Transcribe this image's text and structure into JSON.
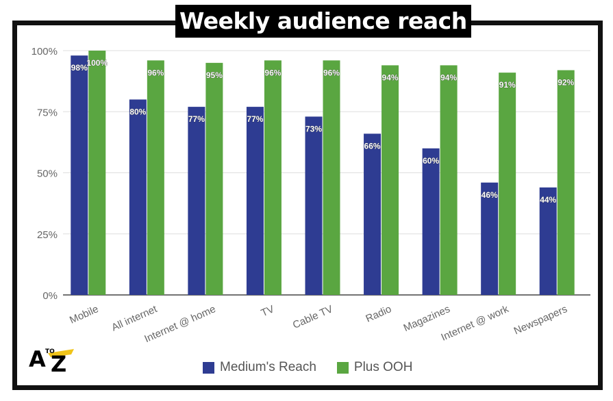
{
  "title": "Weekly audience reach",
  "logo": {
    "text_a": "A",
    "text_to": "TO",
    "text_z": "Z"
  },
  "colors": {
    "series1": "#2e3c92",
    "series2": "#5aa641",
    "grid": "#dddddd",
    "axis_text": "#666666"
  },
  "chart_data": {
    "type": "bar",
    "title": "Weekly audience reach",
    "xlabel": "",
    "ylabel": "",
    "ylim": [
      0,
      100
    ],
    "yticks": [
      "0%",
      "25%",
      "50%",
      "75%",
      "100%"
    ],
    "grid": true,
    "legend_position": "bottom",
    "categories": [
      "Mobile",
      "All internet",
      "Internet @ home",
      "TV",
      "Cable TV",
      "Radio",
      "Magazines",
      "Internet @ work",
      "Newspapers"
    ],
    "series": [
      {
        "name": "Medium's Reach",
        "values": [
          98,
          80,
          77,
          77,
          73,
          66,
          60,
          46,
          44
        ],
        "labels": [
          "98%",
          "80%",
          "77%",
          "77%",
          "73%",
          "66%",
          "60%",
          "46%",
          "44%"
        ]
      },
      {
        "name": "Plus OOH",
        "values": [
          100,
          96,
          95,
          96,
          96,
          94,
          94,
          91,
          92
        ],
        "labels": [
          "100%",
          "96%",
          "95%",
          "96%",
          "96%",
          "94%",
          "94%",
          "91%",
          "92%"
        ]
      }
    ]
  }
}
